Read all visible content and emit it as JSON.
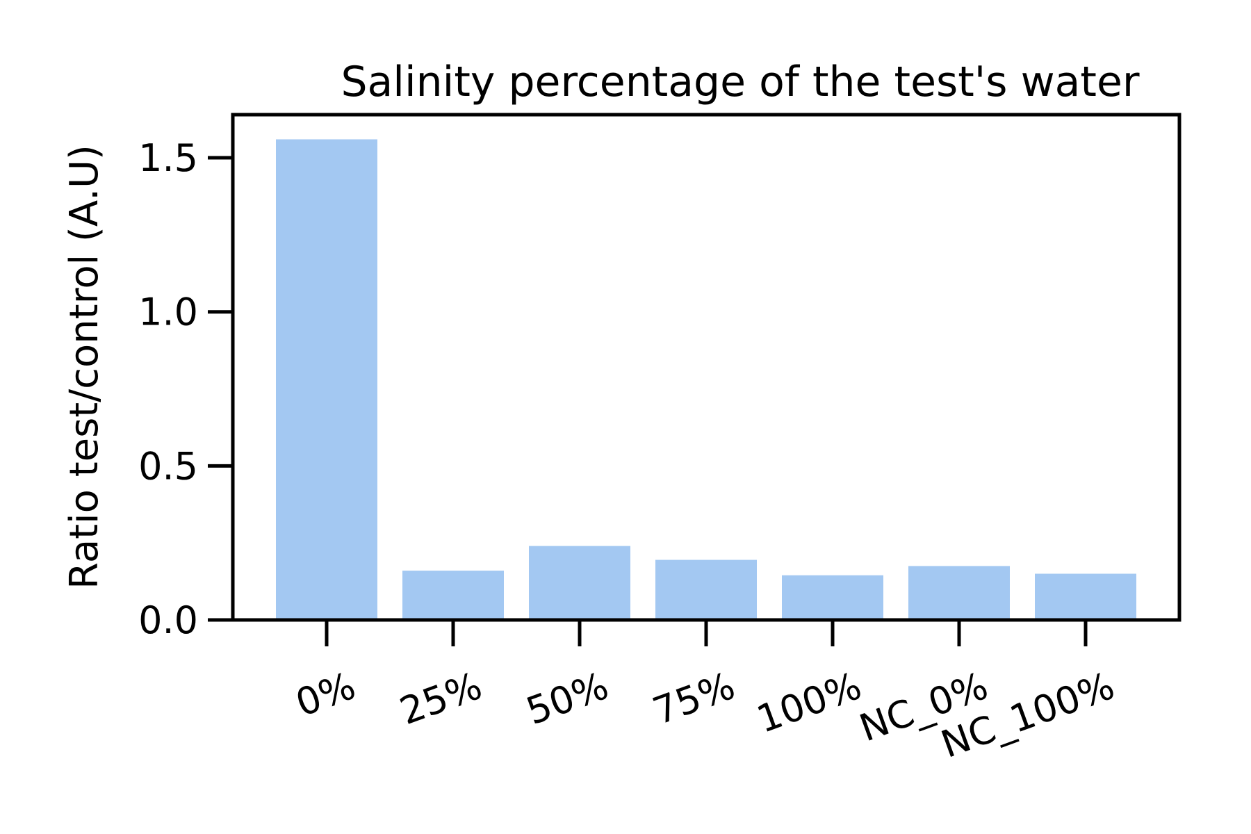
{
  "chart_data": {
    "type": "bar",
    "title": "Salinity percentage of the test's water",
    "xlabel": "",
    "ylabel": "Ratio test/control (A.U)",
    "categories": [
      "0%",
      "25%",
      "50%",
      "75%",
      "100%",
      "NC_0%",
      "NC_100%"
    ],
    "values": [
      1.56,
      0.16,
      0.24,
      0.195,
      0.145,
      0.175,
      0.15
    ],
    "ylim": [
      0,
      1.64
    ],
    "yticks": [
      "0.0",
      "0.5",
      "1.0",
      "1.5"
    ],
    "ytick_values": [
      0.0,
      0.5,
      1.0,
      1.5
    ],
    "grid": false,
    "bar_color": "#a3c8f2",
    "axis_color": "#000000"
  }
}
